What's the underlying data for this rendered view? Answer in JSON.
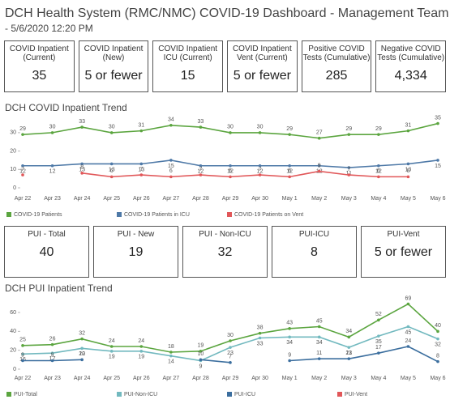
{
  "header": {
    "title": "DCH Health System (RMC/NMC) COVID-19 Dashboard - Management Team",
    "subtitle": " - 5/6/2020 12:20 PM"
  },
  "kpis": [
    {
      "label": "COVID Inpatient (Current)",
      "value": "35"
    },
    {
      "label": "COVID Inpatient (New)",
      "value": "5 or fewer"
    },
    {
      "label": "COVID Inpatient ICU (Current)",
      "value": "15"
    },
    {
      "label": "COVID Inpatient Vent (Current)",
      "value": "5 or fewer"
    },
    {
      "label": "Positive COVID Tests (Cumulative)",
      "value": "285"
    },
    {
      "label": "Negative COVID Tests (Cumulative)",
      "value": "4,334"
    }
  ],
  "pui_kpis": [
    {
      "label": "PUI - Total",
      "value": "40"
    },
    {
      "label": "PUI - New",
      "value": "19"
    },
    {
      "label": "PUI - Non-ICU",
      "value": "32"
    },
    {
      "label": "PUI-ICU",
      "value": "8"
    },
    {
      "label": "PUI-Vent",
      "value": "5 or fewer"
    }
  ],
  "chart_data": [
    {
      "type": "line",
      "title": "DCH COVID Inpatient Trend",
      "categories": [
        "Apr 22",
        "Apr 23",
        "Apr 24",
        "Apr 25",
        "Apr 26",
        "Apr 27",
        "Apr 28",
        "Apr 29",
        "Apr 30",
        "May 1",
        "May 2",
        "May 3",
        "May 4",
        "May 5",
        "May 6"
      ],
      "ylim": [
        0,
        37
      ],
      "yticks": [
        0,
        10,
        20,
        30
      ],
      "series": [
        {
          "name": "COVID-19 Patients",
          "color": "#5ba53f",
          "values": [
            29,
            30,
            33,
            30,
            31,
            34,
            33,
            30,
            30,
            29,
            27,
            29,
            29,
            31,
            35
          ]
        },
        {
          "name": "COVID-19 Patients in ICU",
          "color": "#4e79a7",
          "values": [
            12,
            12,
            13,
            13,
            13,
            15,
            12,
            12,
            12,
            12,
            12,
            11,
            12,
            13,
            15
          ]
        },
        {
          "name": "COVID-19 Patients on Vent",
          "color": "#e15759",
          "values": [
            7,
            null,
            8,
            6,
            7,
            6,
            7,
            6,
            7,
            6,
            9,
            7,
            6,
            6,
            null
          ]
        }
      ]
    },
    {
      "type": "line",
      "title": "DCH PUI Inpatient Trend",
      "categories": [
        "Apr 22",
        "Apr 23",
        "Apr 24",
        "Apr 25",
        "Apr 26",
        "Apr 27",
        "Apr 28",
        "Apr 29",
        "Apr 30",
        "May 1",
        "May 2",
        "May 3",
        "May 4",
        "May 5",
        "May 6"
      ],
      "ylim": [
        0,
        72
      ],
      "yticks": [
        0,
        20,
        40,
        60
      ],
      "series": [
        {
          "name": "PUI-Total",
          "color": "#5ba53f",
          "values": [
            25,
            26,
            32,
            24,
            24,
            18,
            19,
            30,
            38,
            43,
            45,
            34,
            52,
            69,
            40
          ]
        },
        {
          "name": "PUI-Non-ICU",
          "color": "#72b9bf",
          "values": [
            16,
            17,
            22,
            19,
            19,
            14,
            9,
            23,
            33,
            34,
            34,
            23,
            35,
            45,
            32
          ]
        },
        {
          "name": "PUI-ICU",
          "color": "#3b6e9e",
          "values": [
            9,
            9,
            10,
            null,
            null,
            null,
            10,
            7,
            null,
            9,
            11,
            11,
            17,
            24,
            8
          ]
        },
        {
          "name": "PUI-Vent",
          "color": "#e15759",
          "values": [
            null,
            null,
            null,
            null,
            null,
            null,
            null,
            null,
            null,
            null,
            null,
            null,
            null,
            null,
            null
          ]
        }
      ]
    }
  ]
}
